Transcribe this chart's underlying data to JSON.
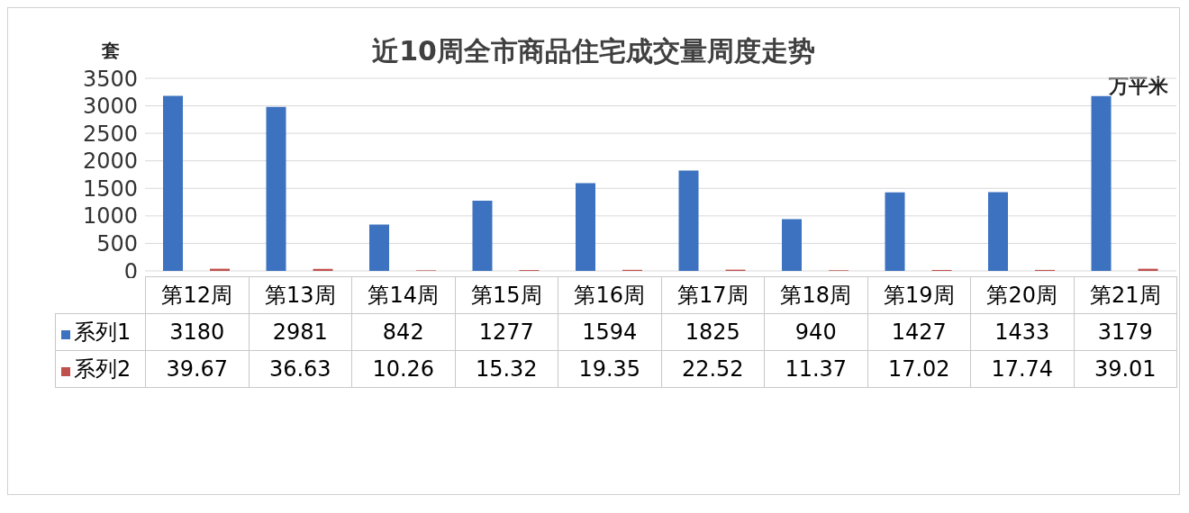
{
  "chart_data": {
    "type": "bar",
    "title": "近10周全市商品住宅成交量周度走势",
    "ylabel": "套",
    "annotations": [
      "万平米"
    ],
    "categories": [
      "第12周",
      "第13周",
      "第14周",
      "第15周",
      "第16周",
      "第17周",
      "第18周",
      "第19周",
      "第20周",
      "第21周"
    ],
    "series": [
      {
        "name": "系列1",
        "color": "#3d72c0",
        "values": [
          3180,
          2981,
          842,
          1277,
          1594,
          1825,
          940,
          1427,
          1433,
          3179
        ]
      },
      {
        "name": "系列2",
        "color": "#c0504d",
        "values": [
          39.67,
          36.63,
          10.26,
          15.32,
          19.35,
          22.52,
          11.37,
          17.02,
          17.74,
          39.01
        ]
      }
    ],
    "ylim": [
      0,
      3500
    ],
    "yticks": [
      0,
      500,
      1000,
      1500,
      2000,
      2500,
      3000,
      3500
    ],
    "grid": "y",
    "legend": "bottom",
    "data_labels": true
  }
}
